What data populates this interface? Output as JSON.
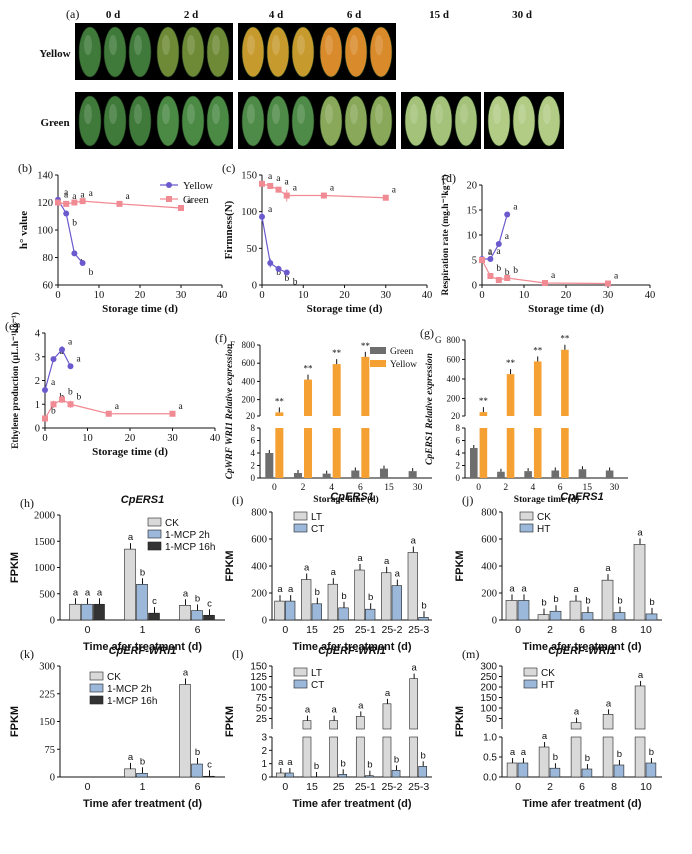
{
  "figure": {
    "panel_a": {
      "label": "(a)",
      "days": [
        "0 d",
        "2 d",
        "4 d",
        "6 d",
        "15 d",
        "30 d"
      ],
      "rows": [
        "Yellow",
        "Green"
      ],
      "photo_colors": {
        "Yellow": [
          "#3f7a3a",
          "#6f8a36",
          "#c79a2e",
          "#d98a2a",
          null,
          null
        ],
        "Green": [
          "#3f7a3a",
          "#4b8a45",
          "#4f8b48",
          "#8aa85a",
          "#a4c27a",
          "#b2cc86"
        ]
      }
    },
    "panel_labels": [
      "(b)",
      "(c)",
      "(d)",
      "(e)",
      "(f)",
      "(g)",
      "(h)",
      "(i)",
      "(j)",
      "(k)",
      "(l)",
      "(m)"
    ],
    "colors": {
      "yellow_series": "#6a5acd",
      "green_series": "#f08a93",
      "green_bar": "#6e6e6e",
      "yellow_bar": "#f5a033",
      "ck": "#d9d9d9",
      "mcp2": "#9bb7d9",
      "mcp16": "#333333",
      "ct": "#9bb7d9",
      "ht": "#9bb7d9",
      "lt": "#d9d9d9"
    }
  },
  "chart_data": [
    {
      "id": "b",
      "type": "line",
      "xlabel": "Storage time (d)",
      "ylabel": "h° value",
      "xlim": [
        0,
        40
      ],
      "ylim": [
        60,
        140
      ],
      "xticks": [
        0,
        10,
        20,
        30,
        40
      ],
      "yticks": [
        60,
        80,
        100,
        120,
        140
      ],
      "legend": "top-right",
      "series": [
        {
          "name": "Yellow",
          "x": [
            0,
            2,
            4,
            6
          ],
          "y": [
            122,
            112,
            83,
            76
          ],
          "err": [
            2,
            2,
            1,
            1
          ],
          "letters": [
            "a",
            "b",
            "b",
            "b"
          ]
        },
        {
          "name": "Green",
          "x": [
            0,
            2,
            4,
            6,
            15,
            30
          ],
          "y": [
            120,
            119,
            120,
            121,
            119,
            116
          ],
          "err": [
            1,
            1,
            1,
            1,
            1,
            1
          ],
          "letters": [
            "a",
            "a",
            "a",
            "a",
            "a",
            "a"
          ]
        }
      ]
    },
    {
      "id": "c",
      "type": "line",
      "xlabel": "Storage time (d)",
      "ylabel": "Firmness(N)",
      "xlim": [
        0,
        40
      ],
      "ylim": [
        0,
        150
      ],
      "xticks": [
        0,
        10,
        20,
        30,
        40
      ],
      "yticks": [
        0,
        50,
        100,
        150
      ],
      "series": [
        {
          "name": "Yellow",
          "x": [
            0,
            2,
            4,
            6
          ],
          "y": [
            93,
            30,
            22,
            17
          ],
          "err": [
            6,
            6,
            4,
            2
          ],
          "letters": [
            "a",
            "b",
            "b",
            "b"
          ]
        },
        {
          "name": "Green",
          "x": [
            0,
            2,
            4,
            6,
            15,
            30
          ],
          "y": [
            138,
            135,
            130,
            122,
            122,
            119
          ],
          "err": [
            3,
            3,
            3,
            8,
            3,
            3
          ],
          "letters": [
            "a",
            "a",
            "a",
            "a",
            "a",
            "a"
          ]
        }
      ]
    },
    {
      "id": "d",
      "type": "line",
      "xlabel": "Storage time (d)",
      "ylabel": "Respiration rate (mg.h⁻¹kg⁻¹)",
      "xlim": [
        0,
        40
      ],
      "ylim": [
        0,
        20
      ],
      "xticks": [
        0,
        10,
        20,
        30,
        40
      ],
      "yticks": [
        0,
        5,
        10,
        15,
        20
      ],
      "series": [
        {
          "name": "Yellow",
          "x": [
            0,
            2,
            4,
            6
          ],
          "y": [
            5.2,
            5.2,
            8.2,
            14.1
          ],
          "err": [
            0.3,
            0.3,
            0.3,
            0.3
          ],
          "letters": [
            "a",
            "a",
            "a",
            "a"
          ]
        },
        {
          "name": "Green",
          "x": [
            0,
            2,
            4,
            6,
            15,
            30
          ],
          "y": [
            5.0,
            1.8,
            1.0,
            1.4,
            0.4,
            0.3
          ],
          "err": [
            0.3,
            0.3,
            0.3,
            0.3,
            0.2,
            0.2
          ],
          "letters": [
            "a",
            "b",
            "b",
            "b",
            "a",
            "a"
          ]
        }
      ]
    },
    {
      "id": "e",
      "type": "line",
      "xlabel": "Storage time (d)",
      "ylabel": "Ethylene production (μL.h⁻¹kg⁻¹)",
      "xlim": [
        0,
        40
      ],
      "ylim": [
        0,
        4
      ],
      "xticks": [
        0,
        10,
        20,
        30,
        40
      ],
      "yticks": [
        0,
        1,
        2,
        3,
        4
      ],
      "series": [
        {
          "name": "Yellow",
          "x": [
            0,
            2,
            4,
            6
          ],
          "y": [
            1.6,
            2.9,
            3.3,
            2.6
          ],
          "err": [
            0.1,
            0.1,
            0.15,
            0.1
          ],
          "letters": [
            "a",
            "a",
            "a",
            "a"
          ]
        },
        {
          "name": "Green",
          "x": [
            0,
            2,
            4,
            6,
            15,
            30
          ],
          "y": [
            0.4,
            1.0,
            1.2,
            1.0,
            0.6,
            0.6
          ],
          "err": [
            0.1,
            0.15,
            0.15,
            0.15,
            0.1,
            0.1
          ],
          "letters": [
            "b",
            "b",
            "b",
            "b",
            "a",
            "a"
          ]
        }
      ]
    },
    {
      "id": "f",
      "type": "bar",
      "ylabel": "CpWRF WRI1 Relative expression",
      "xlabel": "Storage time (d)",
      "corner": "F",
      "categories": [
        "0",
        "2",
        "4",
        "6",
        "15",
        "30"
      ],
      "legend": "top-right",
      "series": [
        {
          "name": "Green",
          "values": [
            4,
            0.8,
            0.7,
            1.2,
            1.5,
            1.1
          ]
        },
        {
          "name": "Yellow",
          "values": [
            60,
            420,
            590,
            670,
            null,
            null
          ]
        }
      ],
      "stars": [
        "**",
        "**",
        "**",
        "**",
        "",
        ""
      ],
      "broken_axis": {
        "lower_ticks": [
          0,
          2,
          4,
          6,
          8
        ],
        "upper_ticks": [
          20,
          200,
          400,
          600,
          800
        ]
      }
    },
    {
      "id": "g",
      "type": "bar",
      "ylabel": "CpERS1 Relative expression",
      "xlabel": "Storage time (d)",
      "corner": "G",
      "categories": [
        "0",
        "2",
        "4",
        "6",
        "15",
        "30"
      ],
      "series": [
        {
          "name": "Green",
          "values": [
            4.8,
            1.0,
            1.1,
            1.2,
            1.4,
            1.2
          ]
        },
        {
          "name": "Yellow",
          "values": [
            60,
            450,
            580,
            700,
            null,
            null
          ]
        }
      ],
      "stars": [
        "**",
        "**",
        "**",
        "**",
        "",
        ""
      ],
      "broken_axis": {
        "lower_ticks": [
          0,
          2,
          4,
          6,
          8
        ],
        "upper_ticks": [
          20,
          200,
          400,
          600,
          800
        ]
      }
    },
    {
      "id": "h",
      "type": "bar",
      "title": "CpERS1",
      "ylabel": "FPKM",
      "xlabel": "Time afer treatment (d)",
      "categories": [
        "0",
        "1",
        "6"
      ],
      "ylim": [
        0,
        2000
      ],
      "yticks": [
        0,
        500,
        1000,
        1500,
        2000
      ],
      "legend": "top-right",
      "series": [
        {
          "name": "CK",
          "values": [
            300,
            1350,
            280
          ],
          "letters": [
            "a",
            "a",
            "a"
          ]
        },
        {
          "name": "1-MCP 2h",
          "values": [
            300,
            680,
            180
          ],
          "letters": [
            "a",
            "b",
            "b"
          ]
        },
        {
          "name": "1-MCP 16h",
          "values": [
            300,
            130,
            90
          ],
          "letters": [
            "a",
            "c",
            "c"
          ]
        }
      ]
    },
    {
      "id": "i",
      "type": "bar",
      "title": "CpERS1",
      "ylabel": "FPKM",
      "xlabel": "Time afer treatment (d)",
      "categories": [
        "0",
        "15",
        "25",
        "25-1",
        "25-2",
        "25-3"
      ],
      "ylim": [
        0,
        800
      ],
      "yticks": [
        0,
        200,
        400,
        600,
        800
      ],
      "legend": "top-left",
      "series": [
        {
          "name": "LT",
          "values": [
            140,
            300,
            265,
            370,
            350,
            500
          ],
          "letters": [
            "a",
            "a",
            "a",
            "a",
            "a",
            "a"
          ]
        },
        {
          "name": "CT",
          "values": [
            140,
            120,
            90,
            80,
            255,
            20
          ],
          "letters": [
            "a",
            "b",
            "b",
            "b",
            "a",
            "b"
          ]
        }
      ]
    },
    {
      "id": "j",
      "type": "bar",
      "title": "CpERS1",
      "ylabel": "FPKM",
      "xlabel": "Time afer treatment (d)",
      "categories": [
        "0",
        "2",
        "6",
        "8",
        "10"
      ],
      "ylim": [
        0,
        800
      ],
      "yticks": [
        0,
        200,
        400,
        600,
        800
      ],
      "legend": "top-left",
      "series": [
        {
          "name": "CK",
          "values": [
            145,
            40,
            140,
            295,
            560
          ],
          "letters": [
            "a",
            "b",
            "a",
            "a",
            "a"
          ]
        },
        {
          "name": "HT",
          "values": [
            145,
            65,
            55,
            55,
            45
          ],
          "letters": [
            "a",
            "b",
            "b",
            "b",
            "b"
          ]
        }
      ]
    },
    {
      "id": "k",
      "type": "bar",
      "title": "CpERF-WRI1",
      "ylabel": "FPKM",
      "xlabel": "Time afer treatment (d)",
      "categories": [
        "0",
        "1",
        "6"
      ],
      "ylim": [
        0,
        300
      ],
      "yticks": [
        0,
        75,
        150,
        225,
        300
      ],
      "legend": "top-left",
      "series": [
        {
          "name": "CK",
          "values": [
            0,
            22,
            250
          ],
          "letters": [
            "",
            "a",
            "a"
          ]
        },
        {
          "name": "1-MCP 2h",
          "values": [
            0,
            10,
            35
          ],
          "letters": [
            "",
            "b",
            "b"
          ]
        },
        {
          "name": "1-MCP 16h",
          "values": [
            0,
            0,
            2
          ],
          "letters": [
            "",
            "",
            "c"
          ]
        }
      ]
    },
    {
      "id": "l",
      "type": "bar",
      "title": "CpERF-WRI1",
      "ylabel": "FPKM",
      "xlabel": "Time afer treatment (d)",
      "categories": [
        "0",
        "15",
        "25",
        "25-1",
        "25-2",
        "25-3"
      ],
      "legend": "top-left",
      "series": [
        {
          "name": "LT",
          "values": [
            0.3,
            20,
            20,
            30,
            60,
            120
          ],
          "letters": [
            "a",
            "a",
            "a",
            "a",
            "a",
            "a"
          ]
        },
        {
          "name": "CT",
          "values": [
            0.3,
            0.0,
            0.2,
            0.1,
            0.5,
            0.8
          ],
          "letters": [
            "a",
            "b",
            "b",
            "b",
            "b",
            "b"
          ]
        }
      ],
      "broken_axis": {
        "lower_ticks": [
          0,
          1,
          2,
          3
        ],
        "upper_ticks": [
          25,
          50,
          75,
          100,
          125,
          150
        ]
      }
    },
    {
      "id": "m",
      "type": "bar",
      "title": "CpERF-WRI1",
      "ylabel": "FPKM",
      "xlabel": "Time afer treatment (d)",
      "categories": [
        "0",
        "2",
        "6",
        "8",
        "10"
      ],
      "legend": "top-left",
      "series": [
        {
          "name": "CK",
          "values": [
            0.35,
            0.75,
            30,
            70,
            205
          ],
          "letters": [
            "a",
            "a",
            "a",
            "a",
            "a"
          ]
        },
        {
          "name": "HT",
          "values": [
            0.35,
            0.22,
            0.2,
            0.3,
            0.35
          ],
          "letters": [
            "a",
            "b",
            "b",
            "b",
            "b"
          ]
        }
      ],
      "broken_axis": {
        "lower_ticks": [
          0.0,
          0.5,
          1.0
        ],
        "upper_ticks": [
          50,
          100,
          150,
          200,
          250,
          300
        ]
      }
    }
  ]
}
